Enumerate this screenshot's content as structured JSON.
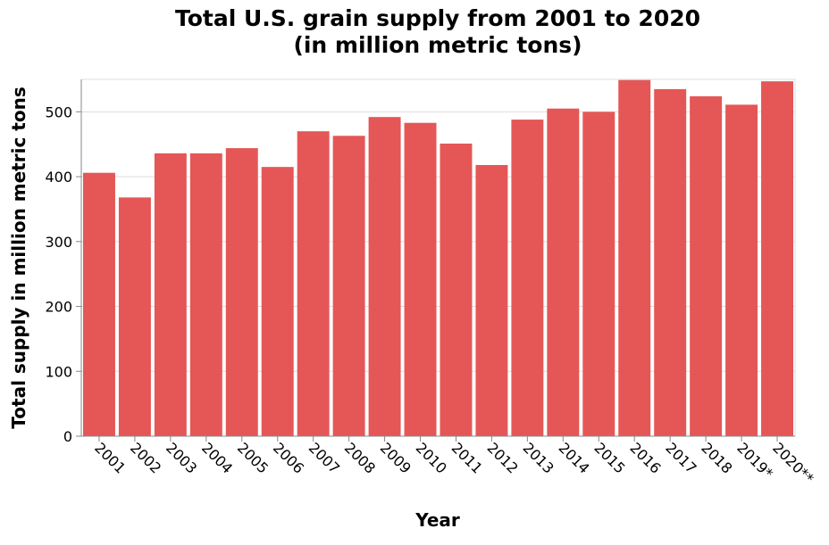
{
  "chart_data": {
    "type": "bar",
    "title": "Total U.S. grain supply from 2001 to 2020",
    "subtitle": "(in million metric tons)",
    "xlabel": "Year",
    "ylabel": "Total supply in million metric tons",
    "categories": [
      "2001",
      "2002",
      "2003",
      "2004",
      "2005",
      "2006",
      "2007",
      "2008",
      "2009",
      "2010",
      "2011",
      "2012",
      "2013",
      "2014",
      "2015",
      "2016",
      "2017",
      "2018",
      "2019*",
      "2020**"
    ],
    "values": [
      406,
      368,
      436,
      436,
      444,
      415,
      470,
      463,
      492,
      483,
      451,
      418,
      488,
      505,
      500,
      549,
      535,
      524,
      511,
      547
    ],
    "ylim": [
      0,
      550
    ],
    "yticks": [
      0,
      100,
      200,
      300,
      400,
      500
    ],
    "grid": true,
    "legend": "none",
    "bar_color": "#e45756"
  }
}
